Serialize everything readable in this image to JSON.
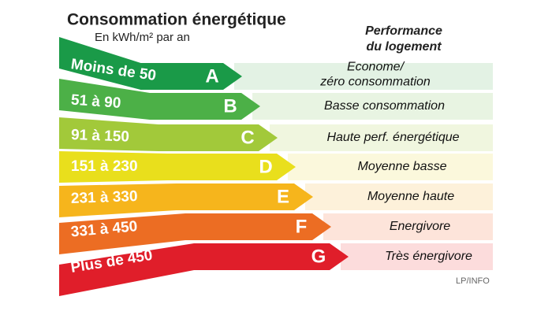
{
  "header": {
    "title": "Consommation énergétique",
    "subtitle": "En kWh/m² par an",
    "performance": [
      "Performance",
      "du logement"
    ]
  },
  "rows": [
    {
      "range": "Moins de 50",
      "letter": "A",
      "description": [
        "Econome/",
        "zéro consommation"
      ]
    },
    {
      "range": "51 à 90",
      "letter": "B",
      "description": [
        "Basse consommation"
      ]
    },
    {
      "range": "91 à 150",
      "letter": "C",
      "description": [
        "Haute  perf. énergétique"
      ]
    },
    {
      "range": "151 à 230",
      "letter": "D",
      "description": [
        "Moyenne basse"
      ]
    },
    {
      "range": "231 à 330",
      "letter": "E",
      "description": [
        "Moyenne haute"
      ]
    },
    {
      "range": "331 à 450",
      "letter": "F",
      "description": [
        "Energivore"
      ]
    },
    {
      "range": "Plus de 450",
      "letter": "G",
      "description": [
        "Très énergivore"
      ]
    }
  ],
  "source": "LP/INFO"
}
